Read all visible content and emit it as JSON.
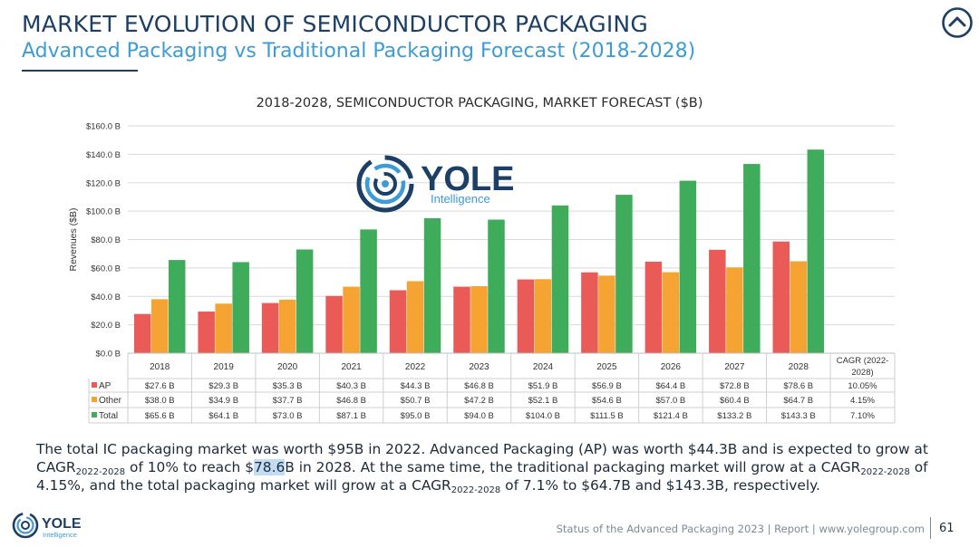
{
  "header": {
    "title": "MARKET EVOLUTION OF SEMICONDUCTOR PACKAGING",
    "subtitle": "Advanced Packaging vs Traditional Packaging Forecast (2018-2028)"
  },
  "logo": {
    "main": "YOLE",
    "sub": "Intelligence"
  },
  "icons": {
    "scroll_up": "chevron-up-icon",
    "logo": "yole-logo-icon"
  },
  "chart_data": {
    "type": "bar",
    "title": "2018-2028, SEMICONDUCTOR PACKAGING, MARKET FORECAST ($B)",
    "ylabel": "Revenues ($B)",
    "xlabel": "",
    "ylim": [
      0,
      160
    ],
    "yticks": [
      0,
      20,
      40,
      60,
      80,
      100,
      120,
      140,
      160
    ],
    "ytick_labels": [
      "$0.0 B",
      "$20.0 B",
      "$40.0 B",
      "$60.0 B",
      "$80.0 B",
      "$100.0 B",
      "$120.0 B",
      "$140.0 B",
      "$160.0 B"
    ],
    "grid": true,
    "categories": [
      "2018",
      "2019",
      "2020",
      "2021",
      "2022",
      "2023",
      "2024",
      "2025",
      "2026",
      "2027",
      "2028"
    ],
    "series": [
      {
        "name": "AP",
        "color": "#ea5a57",
        "values": [
          27.6,
          29.3,
          35.3,
          40.3,
          44.3,
          46.8,
          51.9,
          56.9,
          64.4,
          72.8,
          78.6
        ],
        "labels": [
          "$27.6 B",
          "$29.3 B",
          "$35.3 B",
          "$40.3 B",
          "$44.3 B",
          "$46.8 B",
          "$51.9 B",
          "$56.9 B",
          "$64.4 B",
          "$72.8 B",
          "$78.6 B"
        ],
        "cagr": "10.05%"
      },
      {
        "name": "Other",
        "color": "#f5a332",
        "values": [
          38.0,
          34.9,
          37.7,
          46.8,
          50.7,
          47.2,
          52.1,
          54.6,
          57.0,
          60.4,
          64.7
        ],
        "labels": [
          "$38.0 B",
          "$34.9 B",
          "$37.7 B",
          "$46.8 B",
          "$50.7 B",
          "$47.2 B",
          "$52.1 B",
          "$54.6 B",
          "$57.0 B",
          "$60.4 B",
          "$64.7 B"
        ],
        "cagr": "4.15%"
      },
      {
        "name": "Total",
        "color": "#3eac5a",
        "values": [
          65.6,
          64.1,
          73.0,
          87.1,
          95.0,
          94.0,
          104.0,
          111.5,
          121.4,
          133.2,
          143.3
        ],
        "labels": [
          "$65.6 B",
          "$64.1 B",
          "$73.0 B",
          "$87.1 B",
          "$95.0 B",
          "$94.0 B",
          "$104.0 B",
          "$111.5 B",
          "$121.4 B",
          "$133.2 B",
          "$143.3 B"
        ],
        "cagr": "7.10%"
      }
    ],
    "cagr_header": [
      "CAGR (2022-",
      "2028)"
    ]
  },
  "body": {
    "p1": "The total IC packaging market was worth $95B in 2022. Advanced Packaging (AP) was worth $44.3B and is expected to grow at CAGR",
    "sub1": "2022-2028",
    "p2": " of 10% to reach $",
    "highlight": "78.6",
    "p3": "B in 2028. At the same time, the traditional packaging market will grow at a CAGR",
    "sub2": "2022-2028",
    "p4": " of 4.15%, and the total packaging market will grow at a CAGR",
    "sub3": "2022-2028",
    "p5": " of 7.1% to $64.7B and $143.3B, respectively."
  },
  "footer": {
    "text": "Status of the Advanced Packaging 2023 | Report | www.yolegroup.com",
    "page": "61"
  }
}
